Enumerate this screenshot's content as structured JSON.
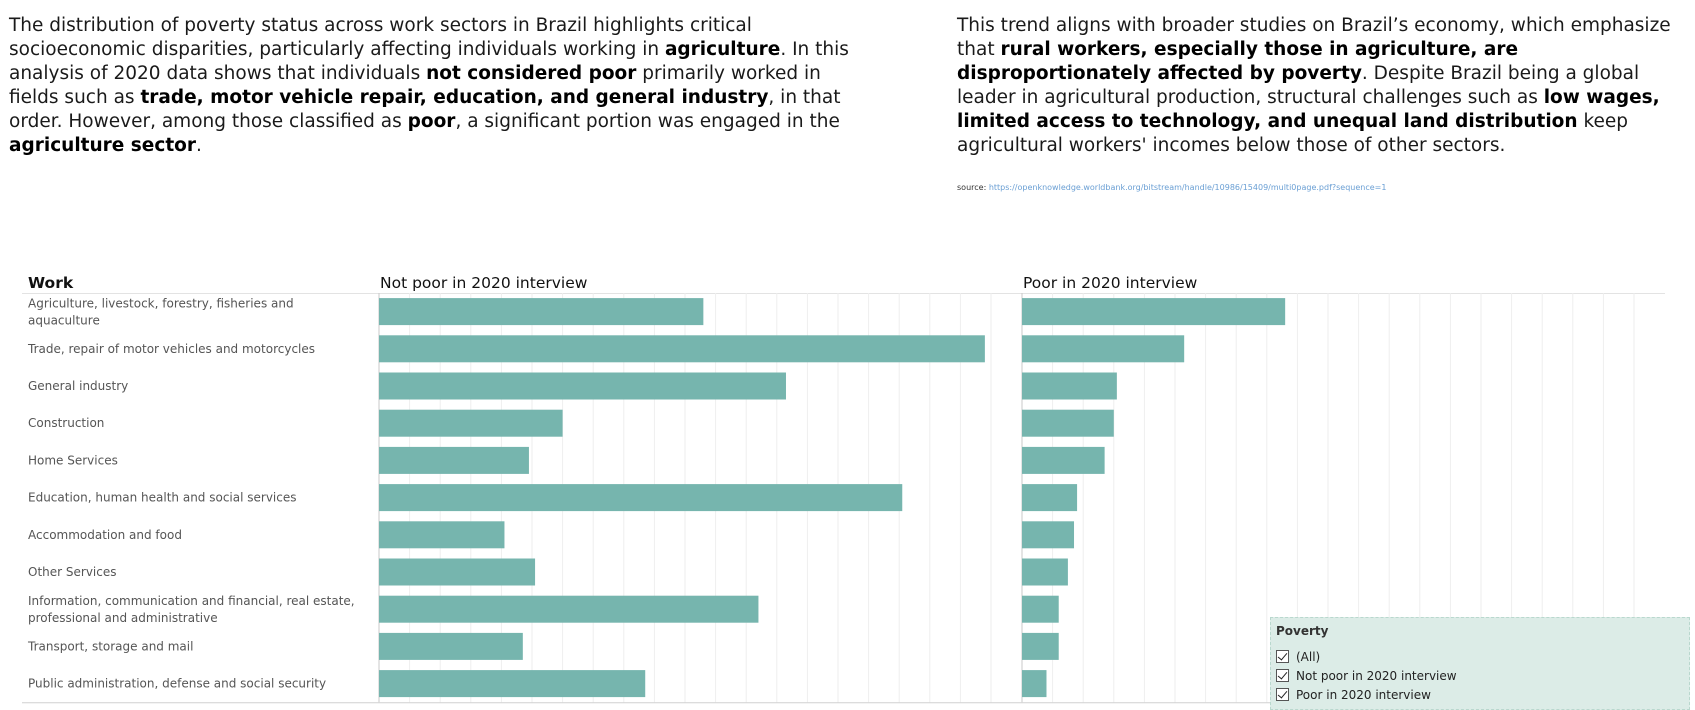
{
  "intro_left": [
    {
      "t": "The distribution of poverty status across work sectors in Brazil highlights critical socioeconomic disparities, particularly affecting individuals working in ",
      "b": false
    },
    {
      "t": "agriculture",
      "b": true
    },
    {
      "t": ". In this analysis of 2020 data shows that individuals ",
      "b": false
    },
    {
      "t": "not considered poor",
      "b": true
    },
    {
      "t": " primarily worked in fields such as ",
      "b": false
    },
    {
      "t": "trade, motor vehicle repair, education, and general industry",
      "b": true
    },
    {
      "t": ", in that order. However, among those classified as ",
      "b": false
    },
    {
      "t": "poor",
      "b": true
    },
    {
      "t": ", a significant portion was engaged in the ",
      "b": false
    },
    {
      "t": "agriculture sector",
      "b": true
    },
    {
      "t": ".",
      "b": false
    }
  ],
  "intro_right": [
    {
      "t": "This trend aligns with broader studies on Brazil’s economy, which emphasize that ",
      "b": false
    },
    {
      "t": "rural workers, especially those in agriculture, are disproportionately affected by poverty",
      "b": true
    },
    {
      "t": ". Despite Brazil being a global leader in agricultural production, structural challenges such as ",
      "b": false
    },
    {
      "t": "low wages, limited access to technology, and unequal land distribution",
      "b": true
    },
    {
      "t": " keep agricultural workers' incomes below those of other sectors.",
      "b": false
    }
  ],
  "source": {
    "label": "source: ",
    "url": "https://openknowledge.worldbank.org/bitstream/handle/10986/15409/multi0page.pdf?sequence=1"
  },
  "chart_data": {
    "type": "bar",
    "orientation": "horizontal",
    "row_header": "Work",
    "categories": [
      "Agriculture, livestock, forestry, fisheries and aquaculture",
      "Trade, repair of motor vehicles and motorcycles",
      "General industry",
      "Construction",
      "Home Services",
      "Education, human health and social services",
      "Accommodation and food",
      "Other Services",
      "Information, communication and financial, real estate, professional and administrative",
      "Transport, storage and mail",
      "Public administration, defense and social security"
    ],
    "series": [
      {
        "name": "Not poor in 2020 interview",
        "values": [
          10.6,
          19.8,
          13.3,
          6.0,
          4.9,
          17.1,
          4.1,
          5.1,
          12.4,
          4.7,
          8.7
        ]
      },
      {
        "name": "Poor in 2020 interview",
        "values": [
          8.6,
          5.3,
          3.1,
          3.0,
          2.7,
          1.8,
          1.7,
          1.5,
          1.2,
          1.2,
          0.8
        ]
      }
    ],
    "xlim": [
      0,
      20
    ],
    "grid": true,
    "bar_color": "#76b5ae",
    "legend_position": "bottom-right"
  },
  "legend": {
    "title": "Poverty",
    "items": [
      "(All)",
      "Not poor in 2020 interview",
      "Poor in 2020 interview"
    ]
  }
}
